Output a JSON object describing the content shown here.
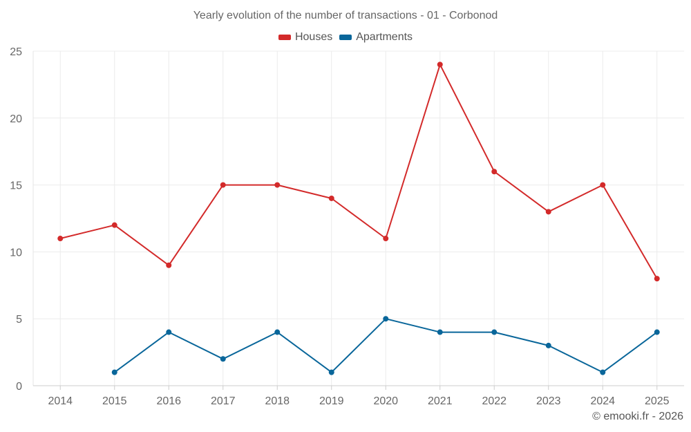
{
  "chart_data": {
    "type": "line",
    "title": "Yearly evolution of the number of transactions - 01 - Corbonod",
    "xlabel": "",
    "ylabel": "",
    "categories": [
      "2014",
      "2015",
      "2016",
      "2017",
      "2018",
      "2019",
      "2020",
      "2021",
      "2022",
      "2023",
      "2024",
      "2025"
    ],
    "ylim": [
      0,
      25
    ],
    "yticks": [
      0,
      5,
      10,
      15,
      20,
      25
    ],
    "grid": true,
    "legend_position": "top-center",
    "series": [
      {
        "name": "Houses",
        "color": "#d32a2a",
        "values": [
          11,
          12,
          9,
          15,
          15,
          14,
          11,
          24,
          16,
          13,
          15,
          8
        ]
      },
      {
        "name": "Apartments",
        "color": "#09669a",
        "values": [
          null,
          1,
          4,
          2,
          4,
          1,
          5,
          4,
          4,
          3,
          1,
          4
        ]
      }
    ]
  },
  "credit": "© emooki.fr - 2026"
}
